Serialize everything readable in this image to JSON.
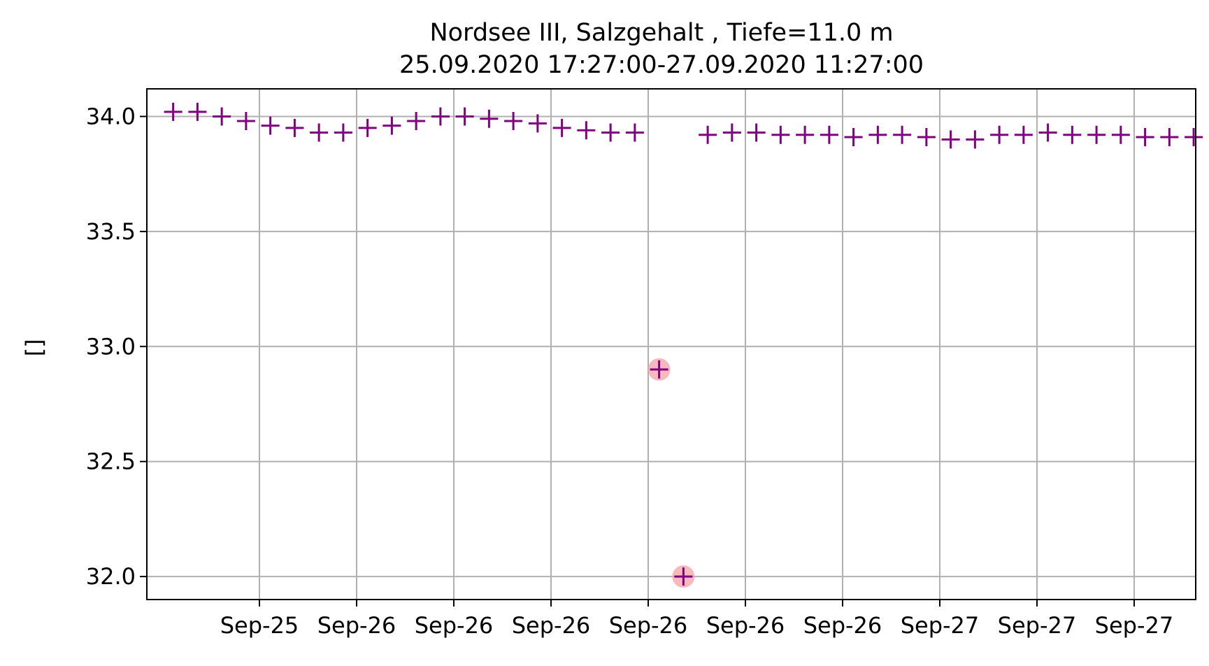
{
  "chart_data": {
    "type": "scatter",
    "title": "Nordsee III, Salzgehalt , Tiefe=11.0 m",
    "subtitle": "25.09.2020 17:27:00-27.09.2020 11:27:00",
    "xlabel": "",
    "ylabel": "[]",
    "ylim": [
      31.9,
      34.12
    ],
    "xlim": [
      "2020-09-25 16:22",
      "2020-09-27 11:32"
    ],
    "grid": true,
    "y_ticks": [
      32.0,
      32.5,
      33.0,
      33.5,
      34.0
    ],
    "y_tick_labels": [
      "32.0",
      "32.5",
      "33.0",
      "33.5",
      "34.0"
    ],
    "x_ticks": [
      "2020-09-25 21:00",
      "2020-09-26 01:00",
      "2020-09-26 05:00",
      "2020-09-26 09:00",
      "2020-09-26 13:00",
      "2020-09-26 17:00",
      "2020-09-26 21:00",
      "2020-09-27 01:00",
      "2020-09-27 05:00",
      "2020-09-27 09:00"
    ],
    "x_tick_labels": [
      "Sep-25",
      "Sep-26",
      "Sep-26",
      "Sep-26",
      "Sep-26",
      "Sep-26",
      "Sep-26",
      "Sep-27",
      "Sep-27",
      "Sep-27"
    ],
    "marker_color": "#800080",
    "highlight_color": "#f4a0a8",
    "series": [
      {
        "marker": "plus",
        "x": [
          "2020-09-25 17:27",
          "2020-09-25 18:27",
          "2020-09-25 19:27",
          "2020-09-25 20:27",
          "2020-09-25 21:27",
          "2020-09-25 22:27",
          "2020-09-25 23:27",
          "2020-09-26 00:27",
          "2020-09-26 01:27",
          "2020-09-26 02:27",
          "2020-09-26 03:27",
          "2020-09-26 04:27",
          "2020-09-26 05:27",
          "2020-09-26 06:27",
          "2020-09-26 07:27",
          "2020-09-26 08:27",
          "2020-09-26 09:27",
          "2020-09-26 10:27",
          "2020-09-26 11:27",
          "2020-09-26 12:27",
          "2020-09-26 13:27",
          "2020-09-26 14:27",
          "2020-09-26 15:27",
          "2020-09-26 16:27",
          "2020-09-26 17:27",
          "2020-09-26 18:27",
          "2020-09-26 19:27",
          "2020-09-26 20:27",
          "2020-09-26 21:27",
          "2020-09-26 22:27",
          "2020-09-26 23:27",
          "2020-09-27 00:27",
          "2020-09-27 01:27",
          "2020-09-27 02:27",
          "2020-09-27 03:27",
          "2020-09-27 04:27",
          "2020-09-27 05:27",
          "2020-09-27 06:27",
          "2020-09-27 07:27",
          "2020-09-27 08:27",
          "2020-09-27 09:27",
          "2020-09-27 10:27",
          "2020-09-27 11:27"
        ],
        "y": [
          34.02,
          34.02,
          34.0,
          33.98,
          33.96,
          33.95,
          33.93,
          33.93,
          33.95,
          33.96,
          33.98,
          34.0,
          34.0,
          33.99,
          33.98,
          33.97,
          33.95,
          33.94,
          33.93,
          33.93,
          32.9,
          32.0,
          33.92,
          33.93,
          33.93,
          33.92,
          33.92,
          33.92,
          33.91,
          33.92,
          33.92,
          33.91,
          33.9,
          33.9,
          33.92,
          33.92,
          33.93,
          33.92,
          33.92,
          33.92,
          33.91,
          33.91,
          33.91
        ]
      }
    ],
    "flagged": [
      {
        "x": "2020-09-26 13:27",
        "y": 32.9
      },
      {
        "x": "2020-09-26 14:27",
        "y": 32.0
      }
    ]
  }
}
